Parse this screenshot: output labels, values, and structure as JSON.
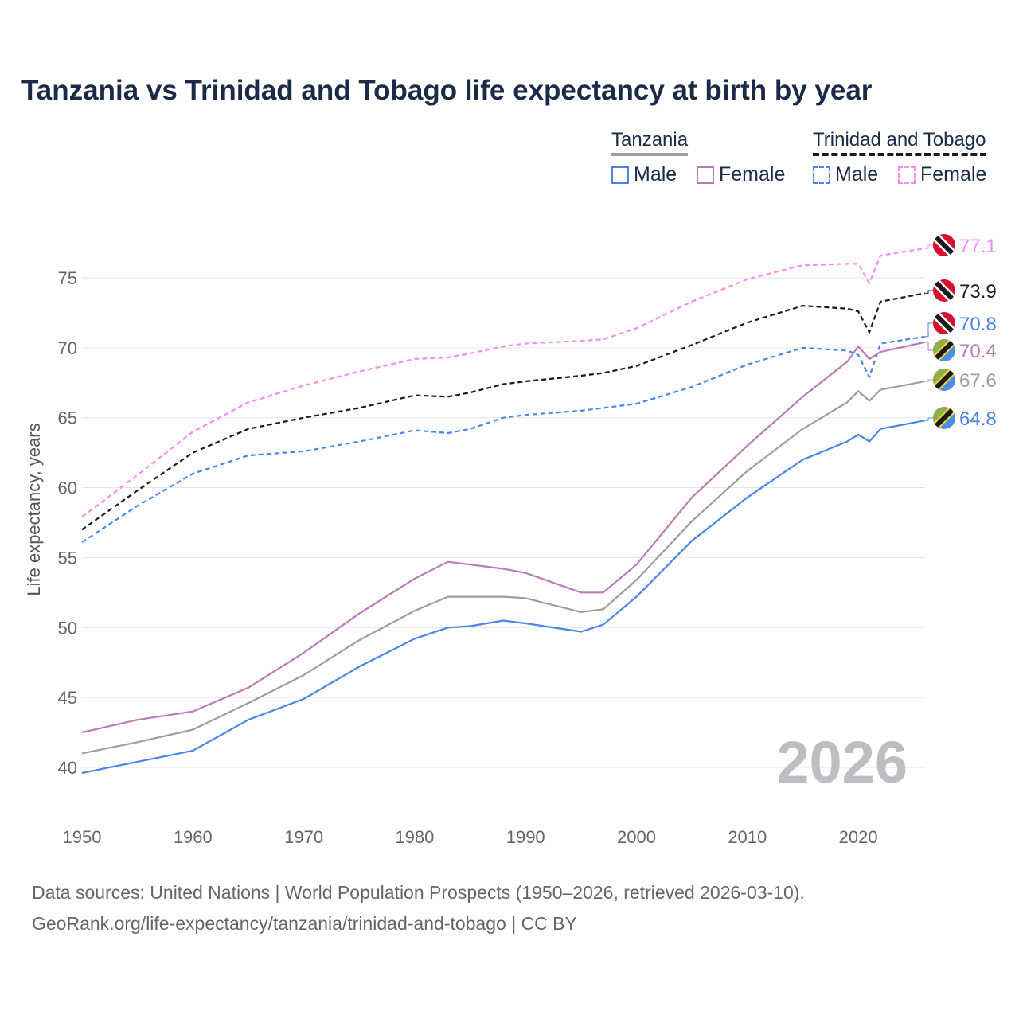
{
  "chart_data": {
    "type": "line",
    "title": "Tanzania vs Trinidad and Tobago life expectancy at birth by year",
    "xlabel": "",
    "ylabel": "Life expectancy, years",
    "xlim": [
      1950,
      2026
    ],
    "ylim": [
      37,
      78
    ],
    "grid": true,
    "x_ticks": [
      1950,
      1960,
      1970,
      1980,
      1990,
      2000,
      2010,
      2020
    ],
    "y_ticks": [
      40,
      45,
      50,
      55,
      60,
      65,
      70,
      75
    ],
    "year_watermark": "2026",
    "x": [
      1950,
      1955,
      1960,
      1965,
      1970,
      1975,
      1980,
      1983,
      1985,
      1988,
      1990,
      1995,
      1997,
      2000,
      2005,
      2010,
      2015,
      2019,
      2020,
      2021,
      2022,
      2026
    ],
    "series": [
      {
        "name": "Trinidad and Tobago Female",
        "country": "Trinidad and Tobago",
        "sex": "Female",
        "color": "#f98cf2",
        "dashed": true,
        "label": "77.1",
        "flag": "trinidad",
        "values": [
          57.9,
          60.9,
          64.0,
          66.1,
          67.3,
          68.3,
          69.2,
          69.3,
          69.6,
          70.1,
          70.3,
          70.5,
          70.6,
          71.4,
          73.3,
          74.9,
          75.9,
          76.0,
          76.0,
          74.6,
          76.6,
          77.1
        ]
      },
      {
        "name": "Trinidad and Tobago",
        "country": "Trinidad and Tobago",
        "sex": "Total",
        "color": "#1a1a1a",
        "dashed": true,
        "label": "73.9",
        "flag": "trinidad",
        "values": [
          57.0,
          59.8,
          62.5,
          64.2,
          65.0,
          65.7,
          66.6,
          66.5,
          66.8,
          67.4,
          67.6,
          68.0,
          68.2,
          68.7,
          70.2,
          71.8,
          73.0,
          72.8,
          72.6,
          71.1,
          73.3,
          73.9
        ]
      },
      {
        "name": "Trinidad and Tobago Male",
        "country": "Trinidad and Tobago",
        "sex": "Male",
        "color": "#4a86e8",
        "dashed": true,
        "label": "70.8",
        "flag": "trinidad",
        "values": [
          56.1,
          58.7,
          61.0,
          62.3,
          62.6,
          63.3,
          64.1,
          63.9,
          64.2,
          65.0,
          65.2,
          65.5,
          65.7,
          66.0,
          67.2,
          68.8,
          70.0,
          69.8,
          69.5,
          67.9,
          70.3,
          70.8
        ]
      },
      {
        "name": "Tanzania Female",
        "country": "Tanzania",
        "sex": "Female",
        "color": "#b87cb9",
        "dashed": false,
        "label": "70.4",
        "flag": "tanzania",
        "values": [
          42.5,
          43.4,
          44.0,
          45.7,
          48.2,
          51.0,
          53.5,
          54.7,
          54.5,
          54.2,
          53.9,
          52.5,
          52.5,
          54.5,
          59.3,
          63.0,
          66.5,
          69.0,
          70.1,
          69.2,
          69.7,
          70.4
        ]
      },
      {
        "name": "Tanzania",
        "country": "Tanzania",
        "sex": "Total",
        "color": "#9e9e9e",
        "dashed": false,
        "label": "67.6",
        "flag": "tanzania",
        "values": [
          41.0,
          41.8,
          42.7,
          44.6,
          46.6,
          49.1,
          51.2,
          52.2,
          52.2,
          52.2,
          52.1,
          51.1,
          51.3,
          53.4,
          57.6,
          61.2,
          64.2,
          66.1,
          66.9,
          66.2,
          67.0,
          67.6
        ]
      },
      {
        "name": "Tanzania Male",
        "country": "Tanzania",
        "sex": "Male",
        "color": "#4a86e8",
        "dashed": false,
        "label": "64.8",
        "flag": "tanzania",
        "values": [
          39.6,
          40.4,
          41.2,
          43.4,
          44.9,
          47.2,
          49.2,
          50.0,
          50.1,
          50.5,
          50.3,
          49.7,
          50.2,
          52.2,
          56.2,
          59.3,
          62.0,
          63.3,
          63.8,
          63.3,
          64.2,
          64.8
        ]
      }
    ]
  },
  "legend": {
    "tanzania": {
      "title": "Tanzania",
      "male": "Male",
      "female": "Female"
    },
    "trinidad": {
      "title": "Trinidad and Tobago",
      "male": "Male",
      "female": "Female"
    }
  },
  "source": {
    "line1": "Data sources: United Nations | World Population Prospects (1950–2026, retrieved 2026-03-10).",
    "line2": "GeoRank.org/life-expectancy/tanzania/trinidad-and-tobago | CC BY"
  }
}
